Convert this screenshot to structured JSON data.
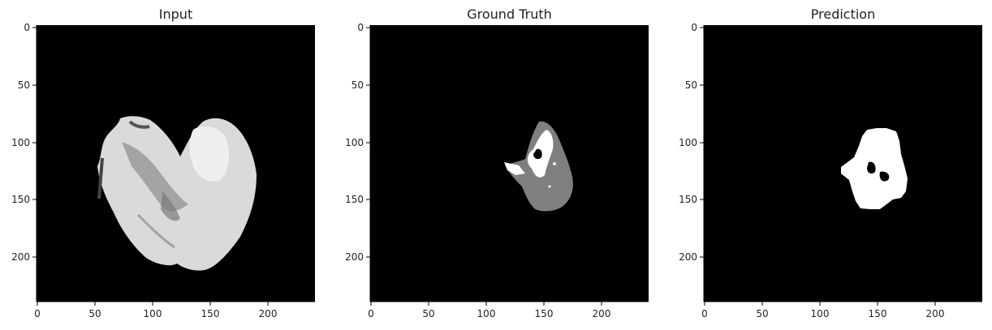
{
  "panels": [
    {
      "title": "Input"
    },
    {
      "title": "Ground Truth"
    },
    {
      "title": "Prediction"
    }
  ],
  "axes": {
    "x_ticks": [
      "0",
      "50",
      "100",
      "150",
      "200"
    ],
    "y_ticks": [
      "0",
      "50",
      "100",
      "150",
      "200"
    ]
  },
  "colors": {
    "background": "#000000",
    "gray_region": "#7f7f7f",
    "white_region": "#ffffff",
    "axis": "#000000"
  }
}
